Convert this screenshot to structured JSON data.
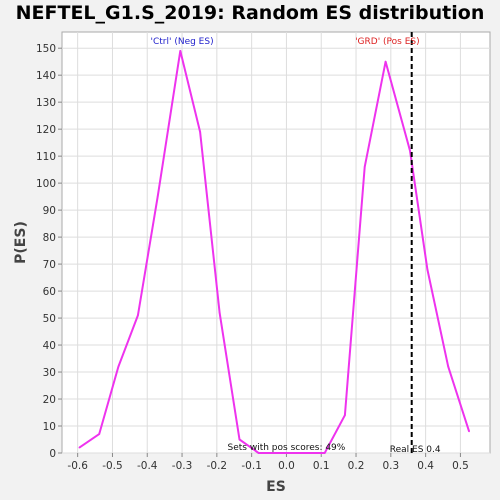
{
  "chart_data": {
    "type": "line",
    "title": "NEFTEL_G1.S_2019: Random ES distribution",
    "xlabel": "ES",
    "ylabel": "P(ES)",
    "xlim": [
      -0.645,
      0.585
    ],
    "ylim": [
      0,
      156
    ],
    "x_ticks": [
      "-0.6",
      "-0.5",
      "-0.4",
      "-0.3",
      "-0.2",
      "-0.1",
      "0.0",
      "0.1",
      "0.2",
      "0.3",
      "0.4",
      "0.5"
    ],
    "y_ticks": [
      "0",
      "10",
      "20",
      "30",
      "40",
      "50",
      "60",
      "70",
      "80",
      "90",
      "100",
      "110",
      "120",
      "130",
      "140",
      "150"
    ],
    "grid": true,
    "series": [
      {
        "color": "#ee33ee",
        "points": [
          [
            -0.595,
            2
          ],
          [
            -0.538,
            7
          ],
          [
            -0.483,
            32
          ],
          [
            -0.427,
            51
          ],
          [
            -0.37,
            95
          ],
          [
            -0.305,
            149
          ],
          [
            -0.248,
            119
          ],
          [
            -0.192,
            52
          ],
          [
            -0.135,
            5
          ],
          [
            -0.08,
            0
          ],
          [
            -0.025,
            0
          ],
          [
            0.03,
            0
          ],
          [
            0.087,
            0
          ],
          [
            0.11,
            0
          ],
          [
            0.168,
            14
          ],
          [
            0.225,
            106
          ],
          [
            0.285,
            145
          ],
          [
            0.355,
            112
          ],
          [
            0.405,
            68
          ],
          [
            0.465,
            32
          ],
          [
            0.525,
            8
          ]
        ]
      }
    ],
    "real_es_line": {
      "x": 0.36,
      "style": "dashed",
      "color": "#000000"
    },
    "annotations": [
      {
        "id": "ctrl",
        "text": "'Ctrl' (Neg ES)",
        "x": -0.3,
        "color": "#2222cc"
      },
      {
        "id": "grd",
        "text": "'GRD' (Pos ES)",
        "x": 0.29,
        "color": "#dd2222"
      },
      {
        "id": "pos",
        "text": "Sets with pos scores: 49%",
        "x": 0.0,
        "color": "#111111"
      },
      {
        "id": "real",
        "text": "Real ES 0.4",
        "x": 0.37,
        "color": "#111111"
      }
    ]
  }
}
